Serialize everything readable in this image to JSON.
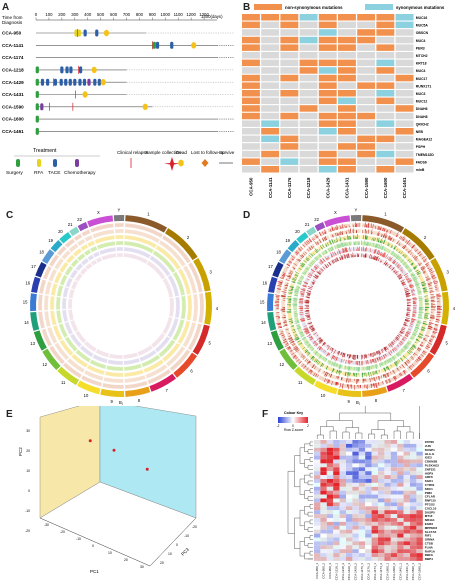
{
  "panels": {
    "a": "A",
    "b": "B",
    "c": "C",
    "d": "D",
    "e": "E",
    "f": "F"
  },
  "timeline": {
    "axis_title_line1": "Time from",
    "axis_title_line2": "Diagnosis",
    "axis_unit": "1400(days)",
    "ticks": [
      "0",
      "100",
      "200",
      "300",
      "400",
      "500",
      "600",
      "700",
      "800",
      "900",
      "1000",
      "1100",
      "1200",
      "1300"
    ],
    "tick_values": [
      0,
      100,
      200,
      300,
      400,
      500,
      600,
      700,
      800,
      900,
      1000,
      1100,
      1200,
      1300
    ],
    "max_days": 1400,
    "patients": [
      {
        "name": "CCA-950",
        "end": 850,
        "events": [
          {
            "t": 310,
            "k": "rfa"
          },
          {
            "t": 335,
            "k": "rfa"
          },
          {
            "t": 320,
            "k": "relapse"
          },
          {
            "t": 380,
            "k": "tace"
          },
          {
            "t": 470,
            "k": "tace"
          },
          {
            "t": 545,
            "k": "dead"
          }
        ]
      },
      {
        "name": "CCA-1141",
        "end": 1450,
        "events": [
          {
            "t": 900,
            "k": "relapse"
          },
          {
            "t": 915,
            "k": "surgery"
          },
          {
            "t": 940,
            "k": "tace"
          },
          {
            "t": 1050,
            "k": "tace"
          },
          {
            "t": 1220,
            "k": "dead"
          }
        ]
      },
      {
        "name": "CCA-1174",
        "end": 1450,
        "events": []
      },
      {
        "name": "CCA-1218",
        "end": 700,
        "events": [
          {
            "t": 10,
            "k": "surgery"
          },
          {
            "t": 200,
            "k": "tace"
          },
          {
            "t": 240,
            "k": "tace"
          },
          {
            "t": 270,
            "k": "tace"
          },
          {
            "t": 330,
            "k": "relapse"
          },
          {
            "t": 345,
            "k": "tace"
          },
          {
            "t": 450,
            "k": "dead"
          }
        ]
      },
      {
        "name": "CCA-1429",
        "end": 700,
        "events": [
          {
            "t": 10,
            "k": "surgery"
          },
          {
            "t": 50,
            "k": "tace"
          },
          {
            "t": 90,
            "k": "tace"
          },
          {
            "t": 135,
            "k": "relapse"
          },
          {
            "t": 150,
            "k": "tace"
          },
          {
            "t": 195,
            "k": "tace"
          },
          {
            "t": 230,
            "k": "tace"
          },
          {
            "t": 265,
            "k": "tace"
          },
          {
            "t": 300,
            "k": "tace"
          },
          {
            "t": 340,
            "k": "tace"
          },
          {
            "t": 375,
            "k": "tace"
          },
          {
            "t": 410,
            "k": "chemo"
          },
          {
            "t": 455,
            "k": "tace"
          },
          {
            "t": 490,
            "k": "tace"
          },
          {
            "t": 520,
            "k": "dead"
          }
        ]
      },
      {
        "name": "CCA-1431",
        "end": 700,
        "events": [
          {
            "t": 10,
            "k": "surgery"
          },
          {
            "t": 305,
            "k": "relapse"
          },
          {
            "t": 380,
            "k": "dead"
          }
        ]
      },
      {
        "name": "CCA-1590",
        "end": 900,
        "events": [
          {
            "t": 10,
            "k": "surgery"
          },
          {
            "t": 45,
            "k": "chemo"
          },
          {
            "t": 105,
            "k": "relapse"
          },
          {
            "t": 285,
            "k": "relapse"
          },
          {
            "t": 845,
            "k": "dead"
          }
        ]
      },
      {
        "name": "CCA-1600",
        "end": 1450,
        "events": [
          {
            "t": 10,
            "k": "surgery"
          }
        ]
      },
      {
        "name": "CCA-1461",
        "end": 1450,
        "events": [
          {
            "t": 10,
            "k": "surgery"
          }
        ]
      }
    ],
    "legend": {
      "treatment_label": "Treatment",
      "relapse_label": "Clinical relapse",
      "sample_label": "Sample collection",
      "dead_label": "Dead",
      "lost_label": "Lost to follow-up",
      "survive_label": "Survive",
      "surgery_label": "Surgery",
      "rfa_label": "RFA",
      "tace_label": "TACE",
      "chemo_label": "Chemotherapy"
    },
    "colors": {
      "surgery": "#2e9e3f",
      "rfa": "#e8d31c",
      "tace": "#2c5fa8",
      "chemo": "#7b3ea0",
      "relapse": "#d8222b",
      "dead": "#f5c21b",
      "lost": "#e07b1f",
      "line": "#555555"
    }
  },
  "heatmap_b": {
    "legend_non": "non-synonymous mutations",
    "legend_syn": "synonymous mutations",
    "genes": [
      "MUC16",
      "MUC5A",
      "OBSCN",
      "MUC4",
      "PER3",
      "MTCH2",
      "KRT18",
      "MUC4",
      "MUC17",
      "RUNX1T1",
      "MUC3",
      "MUC12",
      "DNAH6",
      "DNAH8",
      "QRICH2",
      "NEB",
      "MAGEA12",
      "PSPH",
      "TMEM132D",
      "FADS6",
      "mlnB"
    ],
    "samples": [
      "CCA-950",
      "CCA-1141",
      "CCA-1176",
      "CCA-1218",
      "CCA-1429",
      "CCA-1431",
      "CCA-1590",
      "CCA-1600",
      "CCA-1461"
    ],
    "cells": [
      "NNNSNNNNS",
      "NGNGNGGNS",
      "GGGGSGNNG",
      "NGNSNNNGG",
      "NGNGNNGNG",
      "GGGGGGGGG",
      "NGGNNNGSG",
      "GGGNSNGNG",
      "NGNGNNGGN",
      "NGGGNGNNG",
      "NGNGNNGSG",
      "NGGGNSGNG",
      "NGGNGNGGN",
      "NGNGNNNGG",
      "GSGGNNGSG",
      "GNGGSNGGN",
      "GSNGGGNNG",
      "GGNGGNNGG",
      "GNGGNGNSG",
      "NGSGNNGGN",
      "GNGGSNGNG"
    ],
    "colors": {
      "N": "#f2914d",
      "S": "#8bd1e0",
      "G": "#d9d9d9"
    }
  },
  "circos_c": {
    "labels": [
      "1",
      "2",
      "3",
      "4",
      "5",
      "6",
      "7",
      "8",
      "9",
      "10",
      "11",
      "12",
      "13",
      "14",
      "15",
      "16",
      "17",
      "18",
      "19",
      "20",
      "21",
      "22",
      "X",
      "Y"
    ],
    "x_mark": "B₁"
  },
  "circos_d": {
    "labels": [
      "1",
      "2",
      "3",
      "4",
      "5",
      "6",
      "7",
      "8",
      "9",
      "10",
      "11",
      "12",
      "13",
      "14",
      "15",
      "16",
      "17",
      "18",
      "19",
      "20",
      "21",
      "22",
      "X",
      "Y"
    ],
    "x_mark": "B₁"
  },
  "scatter_e": {
    "xlabel": "PC1",
    "ylabel": "PC2",
    "zlabel": "PC3",
    "yticks": [
      "30",
      "20",
      "10",
      "0",
      "-10",
      "-20"
    ],
    "xticks": [
      "-30",
      "-20",
      "-10",
      "0",
      "10",
      "20",
      "30"
    ],
    "zticks": [
      "20",
      "10",
      "0",
      "-10",
      "-20"
    ],
    "red_points": [
      [
        75,
        330
      ],
      [
        88,
        360
      ],
      [
        82,
        368
      ],
      [
        52,
        350
      ],
      [
        78,
        380
      ],
      [
        95,
        432
      ],
      [
        120,
        442
      ],
      [
        155,
        462
      ],
      [
        148,
        322
      ]
    ],
    "black_points": [
      [
        168,
        326
      ],
      [
        172,
        330
      ],
      [
        176,
        333
      ],
      [
        170,
        340
      ],
      [
        175,
        343
      ],
      [
        180,
        336
      ],
      [
        184,
        331
      ],
      [
        178,
        348
      ],
      [
        172,
        352
      ],
      [
        182,
        352
      ]
    ],
    "colors": {
      "left_wall": "#f7e7a8",
      "right_wall": "#aee8f2",
      "red": "#d8222b",
      "black": "#111111"
    }
  },
  "heatmap_f": {
    "key_title": "Colour Key",
    "key_label": "Row Z-score",
    "key_ticks": [
      "-2",
      "0",
      "2"
    ],
    "genes": [
      "ZFP36",
      "JUN",
      "DUSP1",
      "HLA-G",
      "IGE3",
      "CDKN2B",
      "PLEKHG2",
      "ZNF331",
      "HOPX",
      "ARF6",
      "SGK1",
      "CYR61",
      "SDC1",
      "PIM3",
      "CFLAR",
      "RNF115",
      "PTGS2",
      "CXCL10",
      "DUSP5",
      "MT1F",
      "NR4A1",
      "EGR3",
      "MPPED2",
      "SLC7A5",
      "RIF1",
      "GRINA",
      "CTSB",
      "FLNA",
      "RAP1A",
      "RBFA",
      "RBP4"
    ],
    "columns": [
      "CCA-950_1",
      "CCA-950_2",
      "CCA-950_3",
      "CCA-1218_1",
      "CCA-1218_2",
      "CCA-1429_1",
      "CCA-1429_2",
      "CCA-1176_1",
      "CCA-1176_2",
      "CCA-1174_1",
      "CCA-1174_2",
      "CCA-1600_1",
      "CCA-1600_2",
      "CCA-1461_1",
      "CCA-1461_2",
      "CCA-1590_1",
      "CCA-1590_2"
    ]
  }
}
